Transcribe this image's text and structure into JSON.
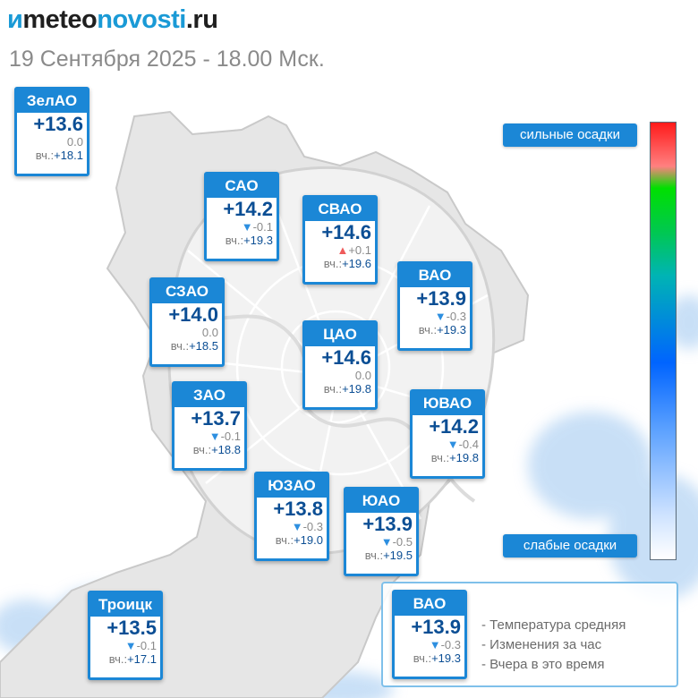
{
  "header": {
    "logo_icon": "ᴎ",
    "logo_part1": "meteo",
    "logo_part2": "novosti",
    "logo_part3": ".ru",
    "date_line": "19 Сентября 2025 - 18.00 Мск."
  },
  "yesterday_label": "вч.:",
  "districts": {
    "zelao": {
      "name": "ЗелАО",
      "temp": "+13.6",
      "change": "0.0",
      "trend": "none",
      "yesterday": "+18.1"
    },
    "sao": {
      "name": "САО",
      "temp": "+14.2",
      "change": "-0.1",
      "trend": "down",
      "yesterday": "+19.3"
    },
    "svao": {
      "name": "СВАО",
      "temp": "+14.6",
      "change": "+0.1",
      "trend": "up",
      "yesterday": "+19.6"
    },
    "vao": {
      "name": "ВАО",
      "temp": "+13.9",
      "change": "-0.3",
      "trend": "down",
      "yesterday": "+19.3"
    },
    "szao": {
      "name": "СЗАО",
      "temp": "+14.0",
      "change": "0.0",
      "trend": "none",
      "yesterday": "+18.5"
    },
    "cao": {
      "name": "ЦАО",
      "temp": "+14.6",
      "change": "0.0",
      "trend": "none",
      "yesterday": "+19.8"
    },
    "zao": {
      "name": "ЗАО",
      "temp": "+13.7",
      "change": "-0.1",
      "trend": "down",
      "yesterday": "+18.8"
    },
    "yuvao": {
      "name": "ЮВАО",
      "temp": "+14.2",
      "change": "-0.4",
      "trend": "down",
      "yesterday": "+19.8"
    },
    "yuzao": {
      "name": "ЮЗАО",
      "temp": "+13.8",
      "change": "-0.3",
      "trend": "down",
      "yesterday": "+19.0"
    },
    "yuao": {
      "name": "ЮАО",
      "temp": "+13.9",
      "change": "-0.5",
      "trend": "down",
      "yesterday": "+19.5"
    },
    "troitsk": {
      "name": "Троицк",
      "temp": "+13.5",
      "change": "-0.1",
      "trend": "down",
      "yesterday": "+17.1"
    }
  },
  "precip_scale": {
    "strong_label": "сильные осадки",
    "weak_label": "слабые осадки"
  },
  "legend": {
    "sample": {
      "name": "ВАО",
      "temp": "+13.9",
      "change": "-0.3",
      "trend": "down",
      "yesterday": "+19.3"
    },
    "line_temp": "- Температура средняя",
    "line_change": "- Изменения за час",
    "line_yesterday": "- Вчера в это время"
  }
}
